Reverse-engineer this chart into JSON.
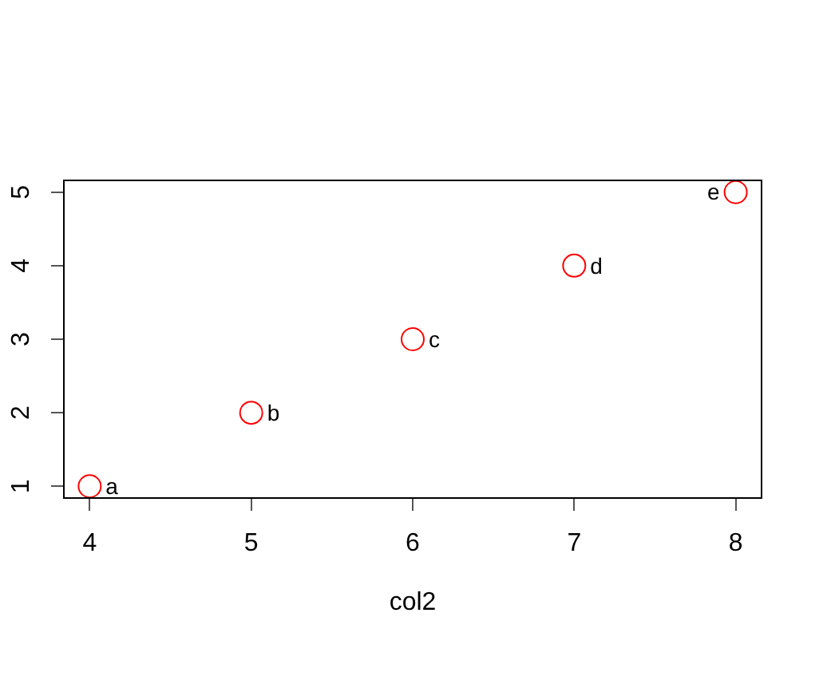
{
  "chart_data": {
    "type": "scatter",
    "xlabel": "col2",
    "x": [
      4,
      5,
      6,
      7,
      8
    ],
    "values": [
      1,
      2,
      3,
      4,
      5
    ],
    "value_labels": [
      "a",
      "b",
      "c",
      "d",
      "e"
    ],
    "color": "#ff0000",
    "marker": "circle",
    "xlim": [
      3.84,
      8.16
    ],
    "ylim": [
      0.84,
      5.16
    ],
    "xticks": [
      4,
      5,
      6,
      7,
      8
    ],
    "yticks": [
      1,
      2,
      3,
      4,
      5
    ],
    "grid": false,
    "legend": false
  }
}
